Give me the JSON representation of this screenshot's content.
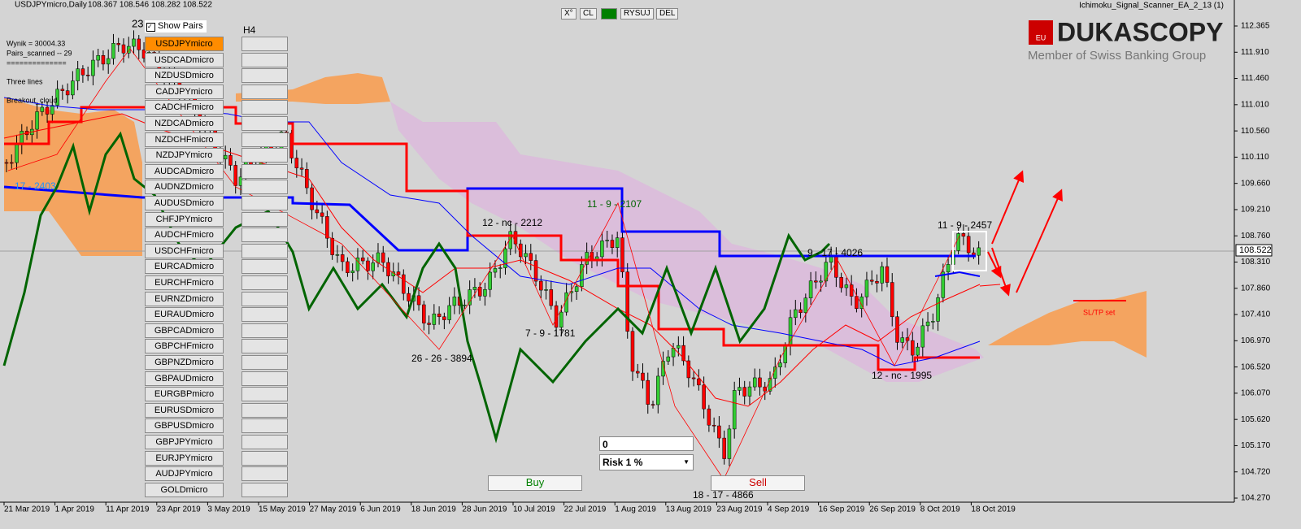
{
  "header": {
    "symbol": "USDJPYmicro,Daily",
    "ohlc": "108.367 108.546 108.282 108.522",
    "ea_name": "Ichimoku_Signal_Scanner_EA_2_13 (1)"
  },
  "toolbar": {
    "buttons": [
      "X°",
      "CL",
      "RYSUJ",
      "DEL"
    ]
  },
  "logo": {
    "badge": "EU",
    "name": "DUKASCOPY",
    "tagline": "Member of Swiss Banking Group"
  },
  "info": {
    "result": "Wynik = 30004.33",
    "scanned": "Pairs_scanned -- 29",
    "separator": "==============",
    "line3": "Three lines",
    "line4": "Breakout_cloud"
  },
  "scanner": {
    "show_pairs": "Show Pairs",
    "timeframe": "H4",
    "pairs": [
      "USDJPYmicro",
      "USDCADmicro",
      "NZDUSDmicro",
      "CADJPYmicro",
      "CADCHFmicro",
      "NZDCADmicro",
      "NZDCHFmicro",
      "NZDJPYmicro",
      "AUDCADmicro",
      "AUDNZDmicro",
      "AUDUSDmicro",
      "CHFJPYmicro",
      "AUDCHFmicro",
      "USDCHFmicro",
      "EURCADmicro",
      "EURCHFmicro",
      "EURNZDmicro",
      "EURAUDmicro",
      "GBPCADmicro",
      "GBPCHFmicro",
      "GBPNZDmicro",
      "GBPAUDmicro",
      "EURGBPmicro",
      "EURUSDmicro",
      "GBPUSDmicro",
      "GBPJPYmicro",
      "EURJPYmicro",
      "AUDJPYmicro",
      "GOLDmicro"
    ]
  },
  "price_axis": {
    "labels": [
      "112.365",
      "111.910",
      "111.460",
      "111.010",
      "110.560",
      "110.110",
      "109.660",
      "109.210",
      "108.760",
      "108.310",
      "107.860",
      "107.410",
      "106.970",
      "106.520",
      "106.070",
      "105.620",
      "105.170",
      "104.720",
      "104.270"
    ],
    "current": "108.522"
  },
  "time_axis": {
    "labels": [
      "21 Mar 2019",
      "1 Apr 2019",
      "11 Apr 2019",
      "23 Apr 2019",
      "3 May 2019",
      "15 May 2019",
      "27 May 2019",
      "6 Jun 2019",
      "18 Jun 2019",
      "28 Jun 2019",
      "10 Jul 2019",
      "22 Jul 2019",
      "1 Aug 2019",
      "13 Aug 2019",
      "23 Aug 2019",
      "4 Sep 2019",
      "16 Sep 2019",
      "26 Sep 2019",
      "8 Oct 2019",
      "18 Oct 2019"
    ]
  },
  "annotations": [
    "23",
    "17 - 2403",
    "12 - nc - 2212",
    "11 - 9 - 2107",
    "7 - 9 - 1781",
    "26 - 26 - 3894",
    "18 - 17 - 4866",
    "9 - 17 - 4026",
    "11 - 9 - 2457",
    "12 - nc - 1995",
    "SL/TP set"
  ],
  "trade_panel": {
    "lots": "0",
    "risk": "Risk 1 %",
    "buy": "Buy",
    "sell": "Sell"
  }
}
